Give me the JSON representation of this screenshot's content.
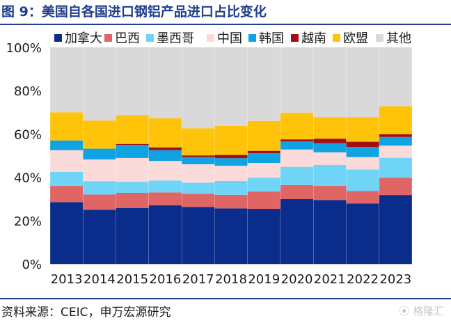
{
  "title": "图 9：美国自各国进口钢铝产品进口占比变化",
  "source": "资料来源：CEIC，申万宏源研究",
  "watermark": "格隆汇",
  "chart_data": {
    "type": "bar",
    "stacked": true,
    "categories": [
      "2013",
      "2014",
      "2015",
      "2016",
      "2017",
      "2018",
      "2019",
      "2020",
      "2021",
      "2022",
      "2023"
    ],
    "ylim": [
      0,
      100
    ],
    "yticks": [
      "0%",
      "20%",
      "40%",
      "60%",
      "80%",
      "100%"
    ],
    "legend_position": "top",
    "series": [
      {
        "name": "加拿大",
        "color": "#0a2d8c",
        "values": [
          28.5,
          25.0,
          25.8,
          27.0,
          26.3,
          25.6,
          25.4,
          29.9,
          29.5,
          27.9,
          31.8
        ]
      },
      {
        "name": "巴西",
        "color": "#e06666",
        "values": [
          7.5,
          7.0,
          7.0,
          6.0,
          6.0,
          6.3,
          8.0,
          6.5,
          6.5,
          5.7,
          8.0
        ]
      },
      {
        "name": "墨西哥",
        "color": "#6fd4f6",
        "values": [
          6.5,
          6.2,
          5.1,
          5.5,
          5.2,
          6.4,
          6.4,
          8.4,
          9.7,
          10.0,
          9.2
        ]
      },
      {
        "name": "中国",
        "color": "#fbdada",
        "values": [
          10.0,
          10.0,
          11.0,
          9.0,
          8.5,
          7.0,
          6.8,
          8.0,
          5.8,
          5.7,
          5.6
        ]
      },
      {
        "name": "韩国",
        "color": "#10a3e2",
        "values": [
          4.5,
          5.0,
          6.0,
          5.0,
          3.3,
          3.5,
          4.5,
          3.7,
          4.2,
          4.7,
          4.0
        ]
      },
      {
        "name": "越南",
        "color": "#a10e14",
        "values": [
          0.0,
          0.0,
          0.5,
          1.3,
          0.8,
          1.5,
          1.1,
          1.0,
          2.1,
          2.4,
          1.3
        ]
      },
      {
        "name": "欧盟",
        "color": "#ffc40a",
        "values": [
          13.0,
          13.0,
          13.3,
          13.4,
          12.5,
          13.4,
          13.8,
          12.3,
          10.0,
          11.4,
          12.9
        ]
      },
      {
        "name": "其他",
        "color": "#d9d9d9",
        "values": [
          30.0,
          33.8,
          31.3,
          32.8,
          37.4,
          36.3,
          34.0,
          30.2,
          32.2,
          32.2,
          27.2
        ]
      }
    ]
  }
}
